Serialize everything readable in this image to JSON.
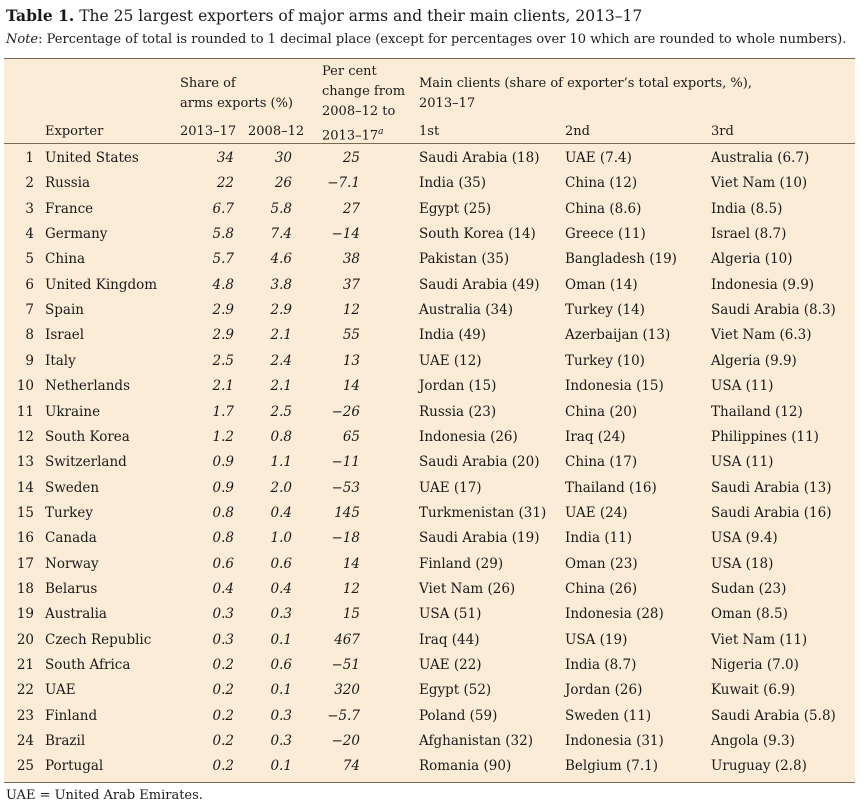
{
  "title": {
    "label": "Table 1.",
    "text": "The 25 largest exporters of major arms and their main clients, 2013–17"
  },
  "note": {
    "label": "Note",
    "text": ": Percentage of total is rounded to 1 decimal place (except for percentages over 10 which are rounded to whole numbers)."
  },
  "header": {
    "exporter": "Exporter",
    "share_line1": "Share of",
    "share_line2": "arms exports (%)",
    "share_2013": "2013–17",
    "share_2008": "2008–12",
    "change_line1": "Per cent",
    "change_line2": "change from",
    "change_line3": "2008–12 to",
    "change_line4": "2013–17",
    "change_sup": "a",
    "clients_line1": "Main clients  (share of exporter’s total exports, %),",
    "clients_line2": "2013–17",
    "first": "1st",
    "second": "2nd",
    "third": "3rd"
  },
  "rows": [
    {
      "rank": "1",
      "exporter": "United States",
      "s1": "34",
      "s2": "30",
      "pc": "25",
      "c1": "Saudi Arabia (18)",
      "c2": "UAE (7.4)",
      "c3": "Australia (6.7)"
    },
    {
      "rank": "2",
      "exporter": "Russia",
      "s1": "22",
      "s2": "26",
      "pc": "−7.1",
      "c1": "India (35)",
      "c2": "China (12)",
      "c3": "Viet Nam (10)"
    },
    {
      "rank": "3",
      "exporter": "France",
      "s1": "6.7",
      "s2": "5.8",
      "pc": "27",
      "c1": "Egypt (25)",
      "c2": "China (8.6)",
      "c3": "India (8.5)"
    },
    {
      "rank": "4",
      "exporter": "Germany",
      "s1": "5.8",
      "s2": "7.4",
      "pc": "−14",
      "c1": "South Korea (14)",
      "c2": "Greece (11)",
      "c3": "Israel (8.7)"
    },
    {
      "rank": "5",
      "exporter": "China",
      "s1": "5.7",
      "s2": "4.6",
      "pc": "38",
      "c1": "Pakistan (35)",
      "c2": "Bangladesh (19)",
      "c3": "Algeria (10)"
    },
    {
      "rank": "6",
      "exporter": "United Kingdom",
      "s1": "4.8",
      "s2": "3.8",
      "pc": "37",
      "c1": "Saudi Arabia (49)",
      "c2": "Oman (14)",
      "c3": "Indonesia (9.9)"
    },
    {
      "rank": "7",
      "exporter": "Spain",
      "s1": "2.9",
      "s2": "2.9",
      "pc": "12",
      "c1": "Australia (34)",
      "c2": "Turkey (14)",
      "c3": "Saudi Arabia (8.3)"
    },
    {
      "rank": "8",
      "exporter": "Israel",
      "s1": "2.9",
      "s2": "2.1",
      "pc": "55",
      "c1": "India (49)",
      "c2": "Azerbaijan (13)",
      "c3": "Viet Nam (6.3)"
    },
    {
      "rank": "9",
      "exporter": "Italy",
      "s1": "2.5",
      "s2": "2.4",
      "pc": "13",
      "c1": "UAE (12)",
      "c2": "Turkey (10)",
      "c3": "Algeria (9.9)"
    },
    {
      "rank": "10",
      "exporter": "Netherlands",
      "s1": "2.1",
      "s2": "2.1",
      "pc": "14",
      "c1": "Jordan (15)",
      "c2": "Indonesia (15)",
      "c3": "USA (11)"
    },
    {
      "rank": "11",
      "exporter": "Ukraine",
      "s1": "1.7",
      "s2": "2.5",
      "pc": "−26",
      "c1": "Russia (23)",
      "c2": "China (20)",
      "c3": "Thailand (12)"
    },
    {
      "rank": "12",
      "exporter": "South Korea",
      "s1": "1.2",
      "s2": "0.8",
      "pc": "65",
      "c1": "Indonesia (26)",
      "c2": "Iraq (24)",
      "c3": "Philippines (11)"
    },
    {
      "rank": "13",
      "exporter": "Switzerland",
      "s1": "0.9",
      "s2": "1.1",
      "pc": "−11",
      "c1": "Saudi Arabia (20)",
      "c2": "China (17)",
      "c3": "USA (11)"
    },
    {
      "rank": "14",
      "exporter": "Sweden",
      "s1": "0.9",
      "s2": "2.0",
      "pc": "−53",
      "c1": "UAE (17)",
      "c2": "Thailand (16)",
      "c3": "Saudi Arabia (13)"
    },
    {
      "rank": "15",
      "exporter": "Turkey",
      "s1": "0.8",
      "s2": "0.4",
      "pc": "145",
      "c1": "Turkmenistan (31)",
      "c2": "UAE (24)",
      "c3": "Saudi Arabia (16)"
    },
    {
      "rank": "16",
      "exporter": "Canada",
      "s1": "0.8",
      "s2": "1.0",
      "pc": "−18",
      "c1": "Saudi Arabia (19)",
      "c2": "India (11)",
      "c3": "USA (9.4)"
    },
    {
      "rank": "17",
      "exporter": "Norway",
      "s1": "0.6",
      "s2": "0.6",
      "pc": "14",
      "c1": "Finland (29)",
      "c2": "Oman (23)",
      "c3": "USA (18)"
    },
    {
      "rank": "18",
      "exporter": "Belarus",
      "s1": "0.4",
      "s2": "0.4",
      "pc": "12",
      "c1": "Viet Nam (26)",
      "c2": "China (26)",
      "c3": "Sudan (23)"
    },
    {
      "rank": "19",
      "exporter": "Australia",
      "s1": "0.3",
      "s2": "0.3",
      "pc": "15",
      "c1": "USA (51)",
      "c2": "Indonesia (28)",
      "c3": "Oman (8.5)"
    },
    {
      "rank": "20",
      "exporter": "Czech Republic",
      "s1": "0.3",
      "s2": "0.1",
      "pc": "467",
      "c1": "Iraq (44)",
      "c2": "USA (19)",
      "c3": "Viet Nam (11)"
    },
    {
      "rank": "21",
      "exporter": "South Africa",
      "s1": "0.2",
      "s2": "0.6",
      "pc": "−51",
      "c1": "UAE (22)",
      "c2": "India (8.7)",
      "c3": "Nigeria (7.0)"
    },
    {
      "rank": "22",
      "exporter": "UAE",
      "s1": "0.2",
      "s2": "0.1",
      "pc": "320",
      "c1": "Egypt (52)",
      "c2": "Jordan (26)",
      "c3": "Kuwait (6.9)"
    },
    {
      "rank": "23",
      "exporter": "Finland",
      "s1": "0.2",
      "s2": "0.3",
      "pc": "−5.7",
      "c1": "Poland (59)",
      "c2": "Sweden (11)",
      "c3": "Saudi Arabia (5.8)"
    },
    {
      "rank": "24",
      "exporter": "Brazil",
      "s1": "0.2",
      "s2": "0.3",
      "pc": "−20",
      "c1": "Afghanistan (32)",
      "c2": "Indonesia (31)",
      "c3": "Angola (9.3)"
    },
    {
      "rank": "25",
      "exporter": "Portugal",
      "s1": "0.2",
      "s2": "0.1",
      "pc": "74",
      "c1": "Romania (90)",
      "c2": "Belgium (7.1)",
      "c3": "Uruguay (2.8)"
    }
  ],
  "footnote": "UAE = United Arab Emirates."
}
